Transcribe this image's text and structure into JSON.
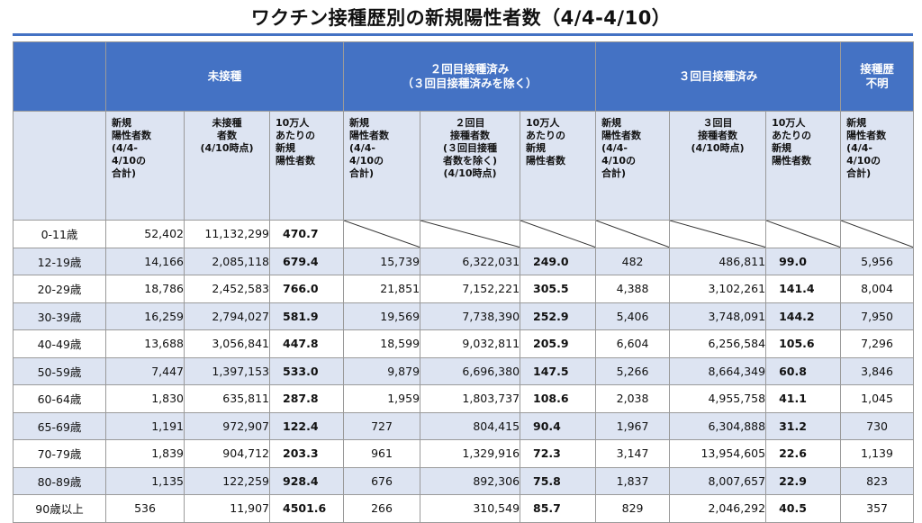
{
  "title": "ワクチン接種歴別の新規陽性者数（4/4-4/10）",
  "colors": {
    "header": "#4472c4",
    "subheader": "#dde4f2",
    "rule": "#4472c4"
  },
  "groups": {
    "unvaccinated": "未接種",
    "two_dose_line1": "２回目接種済み",
    "two_dose_line2": "（３回目接種済みを除く）",
    "three_dose": "３回目接種済み",
    "unknown": "接種歴\n不明"
  },
  "subheaders": {
    "u_cases": "新規\n陽性者数\n(4/4-\n4/10の\n合計)",
    "u_pop": "未接種\n者数\n(4/10時点)",
    "u_rate": "10万人\nあたりの\n新規\n陽性者数",
    "t_cases": "新規\n陽性者数\n(4/4-\n4/10の\n合計)",
    "t_pop": "２回目\n接種者数\n(３回目接種\n者数を除く)\n(4/10時点)",
    "t_rate": "10万人\nあたりの\n新規\n陽性者数",
    "th_cases": "新規\n陽性者数\n(4/4-\n4/10の\n合計)",
    "th_pop": "３回目\n接種者数\n(4/10時点)",
    "th_rate": "10万人\nあたりの\n新規\n陽性者数",
    "unk_cases": "新規\n陽性者数\n(4/4-\n4/10の\n合計)"
  },
  "rows": [
    {
      "age": "0-11歳",
      "u_cases": "52,402",
      "u_pop": "11,132,299",
      "u_rate": "470.7",
      "na": true
    },
    {
      "age": "12-19歳",
      "u_cases": "14,166",
      "u_pop": "2,085,118",
      "u_rate": "679.4",
      "t_cases": "15,739",
      "t_pop": "6,322,031",
      "t_rate": "249.0",
      "th_cases": "482",
      "th_pop": "486,811",
      "th_rate": "99.0",
      "unk": "5,956"
    },
    {
      "age": "20-29歳",
      "u_cases": "18,786",
      "u_pop": "2,452,583",
      "u_rate": "766.0",
      "t_cases": "21,851",
      "t_pop": "7,152,221",
      "t_rate": "305.5",
      "th_cases": "4,388",
      "th_pop": "3,102,261",
      "th_rate": "141.4",
      "unk": "8,004"
    },
    {
      "age": "30-39歳",
      "u_cases": "16,259",
      "u_pop": "2,794,027",
      "u_rate": "581.9",
      "t_cases": "19,569",
      "t_pop": "7,738,390",
      "t_rate": "252.9",
      "th_cases": "5,406",
      "th_pop": "3,748,091",
      "th_rate": "144.2",
      "unk": "7,950"
    },
    {
      "age": "40-49歳",
      "u_cases": "13,688",
      "u_pop": "3,056,841",
      "u_rate": "447.8",
      "t_cases": "18,599",
      "t_pop": "9,032,811",
      "t_rate": "205.9",
      "th_cases": "6,604",
      "th_pop": "6,256,584",
      "th_rate": "105.6",
      "unk": "7,296"
    },
    {
      "age": "50-59歳",
      "u_cases": "7,447",
      "u_pop": "1,397,153",
      "u_rate": "533.0",
      "t_cases": "9,879",
      "t_pop": "6,696,380",
      "t_rate": "147.5",
      "th_cases": "5,266",
      "th_pop": "8,664,349",
      "th_rate": "60.8",
      "unk": "3,846"
    },
    {
      "age": "60-64歳",
      "u_cases": "1,830",
      "u_pop": "635,811",
      "u_rate": "287.8",
      "t_cases": "1,959",
      "t_pop": "1,803,737",
      "t_rate": "108.6",
      "th_cases": "2,038",
      "th_pop": "4,955,758",
      "th_rate": "41.1",
      "unk": "1,045"
    },
    {
      "age": "65-69歳",
      "u_cases": "1,191",
      "u_pop": "972,907",
      "u_rate": "122.4",
      "t_cases": "727",
      "t_pop": "804,415",
      "t_rate": "90.4",
      "th_cases": "1,967",
      "th_pop": "6,304,888",
      "th_rate": "31.2",
      "unk": "730"
    },
    {
      "age": "70-79歳",
      "u_cases": "1,839",
      "u_pop": "904,712",
      "u_rate": "203.3",
      "t_cases": "961",
      "t_pop": "1,329,916",
      "t_rate": "72.3",
      "th_cases": "3,147",
      "th_pop": "13,954,605",
      "th_rate": "22.6",
      "unk": "1,139"
    },
    {
      "age": "80-89歳",
      "u_cases": "1,135",
      "u_pop": "122,259",
      "u_rate": "928.4",
      "t_cases": "676",
      "t_pop": "892,306",
      "t_rate": "75.8",
      "th_cases": "1,837",
      "th_pop": "8,007,657",
      "th_rate": "22.9",
      "unk": "823"
    },
    {
      "age": "90歳以上",
      "u_cases": "536",
      "u_pop": "11,907",
      "u_rate": "4501.6",
      "t_cases": "266",
      "t_pop": "310,549",
      "t_rate": "85.7",
      "th_cases": "829",
      "th_pop": "2,046,292",
      "th_rate": "40.5",
      "unk": "357"
    }
  ]
}
